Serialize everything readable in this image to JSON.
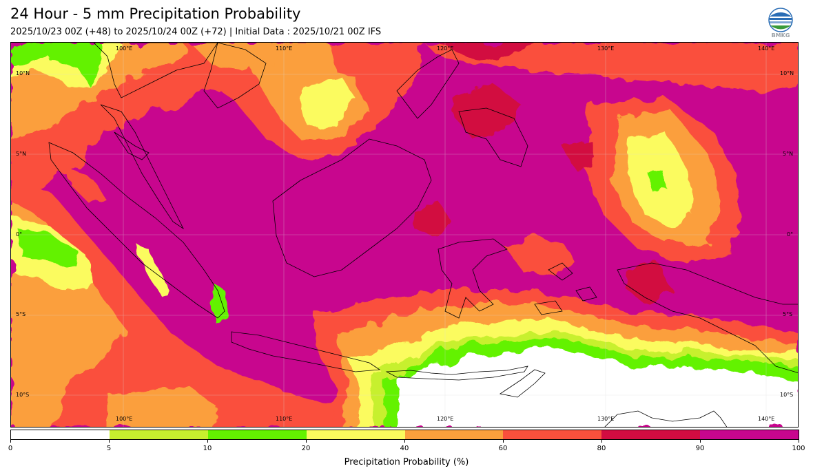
{
  "header": {
    "title": "24 Hour - 5 mm Precipitation Probability",
    "subtitle": "2025/10/23 00Z (+48) to 2025/10/24 00Z (+72) | Initial Data : 2025/10/21 00Z IFS",
    "logo_text": "BMKG"
  },
  "map": {
    "region": "Indonesia maritime continent",
    "lon_labels_top": [
      "100°E",
      "110°E",
      "120°E",
      "130°E",
      "140°E"
    ],
    "lon_labels_bottom": [
      "100°E",
      "110°E",
      "120°E",
      "130°E",
      "140°E"
    ],
    "lat_labels_left": [
      "10°N",
      "5°N",
      "0°",
      "5°S",
      "10°S"
    ],
    "lat_labels_right": [
      "10°N",
      "5°N",
      "0°",
      "5°S",
      "10°S"
    ]
  },
  "legend": {
    "label": "Precipitation Probability (%)",
    "ticks": [
      "0",
      "5",
      "10",
      "20",
      "40",
      "60",
      "80",
      "90",
      "100"
    ],
    "colors": [
      "#ffffff",
      "#c7f02e",
      "#64f200",
      "#fbfb5e",
      "#fb9f3c",
      "#fa503c",
      "#d20c41",
      "#c8068e"
    ]
  }
}
